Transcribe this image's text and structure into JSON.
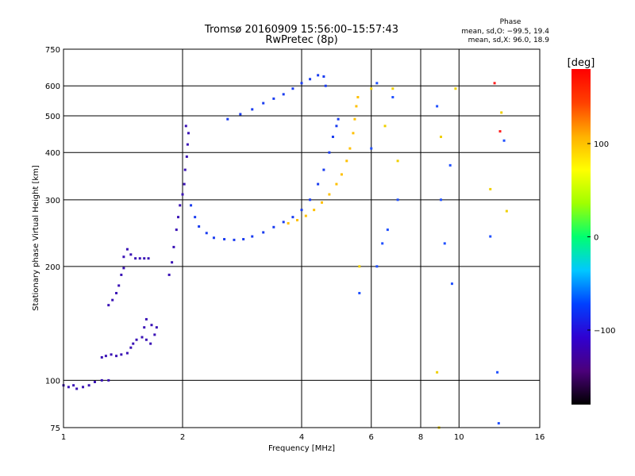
{
  "chart_data": {
    "type": "scatter",
    "title": "Tromsø 20160909 15:56:00–15:57:43",
    "subtitle": "RwPretec (8p)",
    "xlabel": "Frequency [MHz]",
    "ylabel": "Stationary phase Virtual Height [km]",
    "x_scale": "log",
    "y_scale": "log",
    "xlim": [
      1,
      16
    ],
    "ylim": [
      75,
      750
    ],
    "x_ticks": [
      1,
      2,
      4,
      6,
      8,
      10,
      16
    ],
    "x_tick_labels": [
      "1",
      "2",
      "4",
      "6",
      "8",
      "10",
      "16"
    ],
    "y_ticks": [
      75,
      100,
      200,
      300,
      400,
      500,
      600,
      750
    ],
    "y_tick_labels": [
      "75",
      "100",
      "200",
      "300",
      "400",
      "500",
      "600",
      "750"
    ],
    "grid": true,
    "phase_stats": {
      "heading": "Phase",
      "line_o": "mean, sd,O: −99.5, 19.4",
      "line_x": "mean, sd,X:  96.0, 18.9"
    },
    "colorbar": {
      "label": "[deg]",
      "range": [
        -180,
        180
      ],
      "ticks": [
        100,
        0,
        -100
      ],
      "tick_labels": [
        "100",
        "0",
        "−100"
      ],
      "colormap": [
        "#000000",
        "#4b007a",
        "#3000d0",
        "#0040ff",
        "#00c8ff",
        "#00ff70",
        "#a0ff00",
        "#ffff00",
        "#ffb000",
        "#ff4000",
        "#ff0000"
      ]
    },
    "series": [
      {
        "phase_deg": -118,
        "color": "#3a12b6",
        "points": [
          [
            1.0,
            97
          ],
          [
            1.03,
            96
          ],
          [
            1.06,
            97
          ],
          [
            1.08,
            95
          ],
          [
            1.12,
            96
          ],
          [
            1.16,
            97
          ],
          [
            1.2,
            99
          ],
          [
            1.25,
            100
          ],
          [
            1.3,
            100
          ],
          [
            1.25,
            115
          ],
          [
            1.28,
            116
          ],
          [
            1.32,
            117
          ],
          [
            1.36,
            116
          ],
          [
            1.4,
            117
          ],
          [
            1.45,
            118
          ],
          [
            1.48,
            122
          ],
          [
            1.5,
            125
          ],
          [
            1.53,
            128
          ],
          [
            1.58,
            130
          ],
          [
            1.62,
            128
          ],
          [
            1.66,
            125
          ],
          [
            1.7,
            132
          ],
          [
            1.72,
            138
          ],
          [
            1.3,
            158
          ],
          [
            1.33,
            163
          ],
          [
            1.36,
            170
          ],
          [
            1.38,
            178
          ],
          [
            1.4,
            190
          ],
          [
            1.42,
            198
          ],
          [
            1.42,
            212
          ],
          [
            1.45,
            222
          ],
          [
            1.48,
            215
          ],
          [
            1.52,
            210
          ],
          [
            1.56,
            210
          ],
          [
            1.6,
            210
          ],
          [
            1.64,
            210
          ],
          [
            1.62,
            145
          ],
          [
            1.6,
            138
          ],
          [
            1.67,
            140
          ],
          [
            1.85,
            190
          ],
          [
            1.88,
            205
          ],
          [
            1.9,
            225
          ],
          [
            1.93,
            250
          ],
          [
            1.95,
            270
          ],
          [
            1.97,
            290
          ],
          [
            2.0,
            310
          ],
          [
            2.02,
            330
          ],
          [
            2.03,
            360
          ],
          [
            2.05,
            390
          ],
          [
            2.06,
            420
          ],
          [
            2.07,
            450
          ],
          [
            2.04,
            470
          ]
        ]
      },
      {
        "phase_deg": -105,
        "color": "#1a3cf0",
        "points": [
          [
            2.1,
            290
          ],
          [
            2.15,
            270
          ],
          [
            2.2,
            255
          ],
          [
            2.3,
            245
          ],
          [
            2.4,
            238
          ],
          [
            2.55,
            236
          ],
          [
            2.7,
            235
          ],
          [
            2.85,
            236
          ],
          [
            3.0,
            240
          ],
          [
            3.2,
            246
          ],
          [
            3.4,
            254
          ],
          [
            3.6,
            262
          ],
          [
            3.8,
            270
          ],
          [
            4.0,
            282
          ],
          [
            4.2,
            300
          ],
          [
            4.4,
            330
          ],
          [
            4.55,
            360
          ],
          [
            4.7,
            400
          ],
          [
            4.8,
            440
          ],
          [
            4.9,
            470
          ],
          [
            4.95,
            490
          ],
          [
            2.6,
            490
          ],
          [
            2.8,
            505
          ],
          [
            3.0,
            520
          ],
          [
            3.2,
            540
          ],
          [
            3.4,
            555
          ],
          [
            3.6,
            570
          ],
          [
            3.8,
            590
          ],
          [
            4.0,
            610
          ],
          [
            4.2,
            625
          ],
          [
            4.4,
            640
          ],
          [
            4.55,
            635
          ],
          [
            4.6,
            600
          ]
        ]
      },
      {
        "phase_deg": 100,
        "color": "#ffc000",
        "points": [
          [
            3.7,
            260
          ],
          [
            3.9,
            265
          ],
          [
            4.1,
            272
          ],
          [
            4.3,
            282
          ],
          [
            4.5,
            295
          ],
          [
            4.7,
            310
          ],
          [
            4.9,
            330
          ],
          [
            5.05,
            350
          ],
          [
            5.2,
            380
          ],
          [
            5.3,
            410
          ],
          [
            5.4,
            450
          ],
          [
            5.45,
            490
          ],
          [
            5.5,
            530
          ],
          [
            5.55,
            560
          ]
        ]
      },
      {
        "phase_deg": -100,
        "color": "#2050ff",
        "points": [
          [
            5.6,
            170
          ],
          [
            6.0,
            410
          ],
          [
            6.2,
            200
          ],
          [
            6.4,
            230
          ],
          [
            6.6,
            250
          ],
          [
            6.2,
            610
          ],
          [
            6.8,
            560
          ],
          [
            7.0,
            300
          ],
          [
            8.8,
            530
          ],
          [
            9.0,
            300
          ],
          [
            9.2,
            230
          ],
          [
            9.5,
            370
          ],
          [
            9.6,
            180
          ],
          [
            12.0,
            240
          ],
          [
            12.5,
            105
          ],
          [
            12.6,
            77
          ],
          [
            13.0,
            430
          ]
        ]
      },
      {
        "phase_deg": 110,
        "color": "#f0d000",
        "points": [
          [
            5.6,
            200
          ],
          [
            6.0,
            590
          ],
          [
            6.5,
            470
          ],
          [
            6.8,
            590
          ],
          [
            7.0,
            380
          ],
          [
            8.8,
            105
          ],
          [
            8.9,
            75
          ],
          [
            9.0,
            440
          ],
          [
            9.8,
            590
          ],
          [
            12.0,
            320
          ],
          [
            12.8,
            510
          ],
          [
            13.2,
            280
          ]
        ]
      },
      {
        "phase_deg": 175,
        "color": "#ff2020",
        "points": [
          [
            12.3,
            610
          ],
          [
            12.7,
            455
          ]
        ]
      }
    ]
  }
}
